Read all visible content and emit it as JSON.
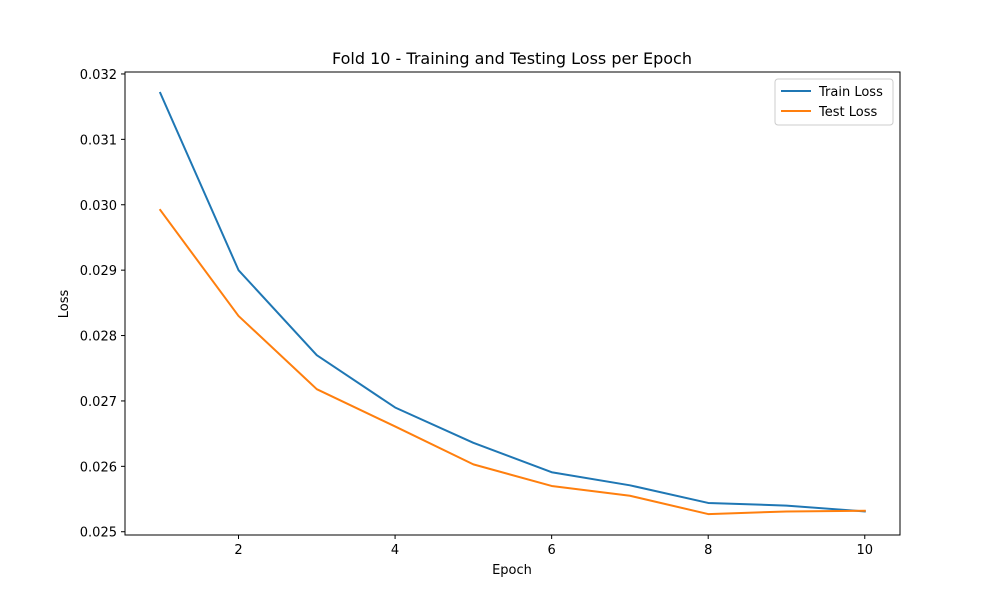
{
  "chart_data": {
    "type": "line",
    "title": "Fold 10 - Training and Testing Loss per Epoch",
    "xlabel": "Epoch",
    "ylabel": "Loss",
    "x": [
      1,
      2,
      3,
      4,
      5,
      6,
      7,
      8,
      9,
      10
    ],
    "xlim": [
      0.55,
      10.45
    ],
    "ylim": [
      0.02495,
      0.03203
    ],
    "xticks": [
      2,
      4,
      6,
      8,
      10
    ],
    "yticks": [
      0.025,
      0.026,
      0.027,
      0.028,
      0.029,
      0.03,
      0.031,
      0.032
    ],
    "ytick_labels": [
      "0.025",
      "0.026",
      "0.027",
      "0.028",
      "0.029",
      "0.030",
      "0.031",
      "0.032"
    ],
    "grid": false,
    "legend_position": "top-right",
    "series": [
      {
        "name": "Train Loss",
        "color": "#1f77b4",
        "values": [
          0.03171,
          0.029,
          0.0277,
          0.0269,
          0.02636,
          0.02591,
          0.02571,
          0.02544,
          0.0254,
          0.02531
        ]
      },
      {
        "name": "Test Loss",
        "color": "#ff7f0e",
        "values": [
          0.02992,
          0.0283,
          0.02718,
          0.02661,
          0.02603,
          0.0257,
          0.02555,
          0.02527,
          0.02531,
          0.02532
        ]
      }
    ]
  }
}
